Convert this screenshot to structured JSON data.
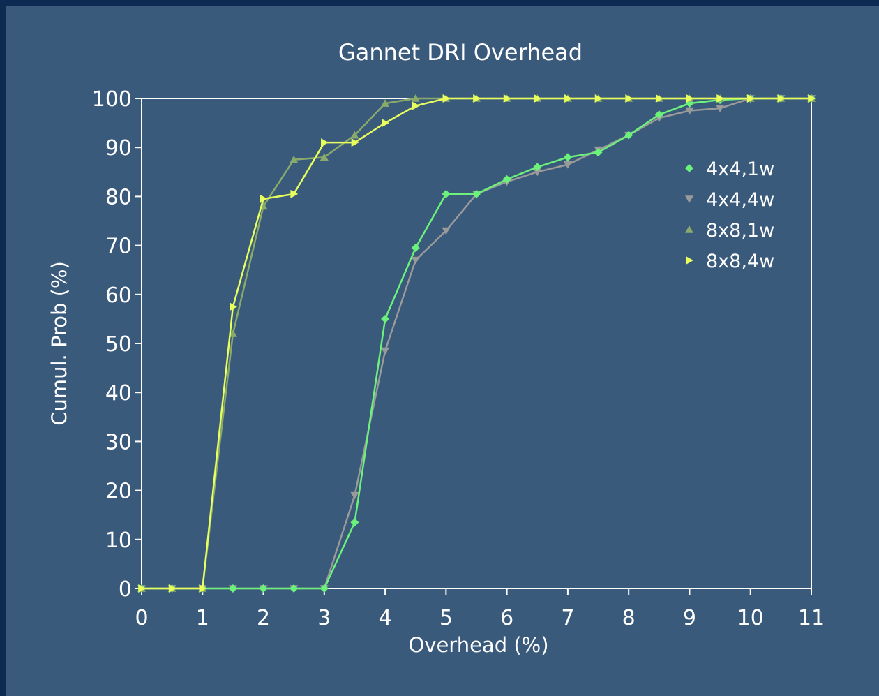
{
  "chart_data": {
    "type": "line",
    "title": "Gannet DRI Overhead",
    "xlabel": "Overhead (%)",
    "ylabel": "Cumul. Prob (%)",
    "xlim": [
      0,
      11
    ],
    "ylim": [
      0,
      100
    ],
    "xticks": [
      "0",
      "1",
      "2",
      "3",
      "4",
      "5",
      "6",
      "7",
      "8",
      "9",
      "10",
      "11"
    ],
    "yticks": [
      "0",
      "10",
      "20",
      "30",
      "40",
      "50",
      "60",
      "70",
      "80",
      "90",
      "100"
    ],
    "grid": "horizontal line at 100 only",
    "legend_position": "right",
    "background_color": "#3a5a7c",
    "x": [
      0,
      0.5,
      1,
      1.5,
      2,
      2.5,
      3,
      3.5,
      4,
      4.5,
      5,
      5.5,
      6,
      6.5,
      7,
      7.5,
      8,
      8.5,
      9,
      9.5,
      10,
      10.5,
      11
    ],
    "series": [
      {
        "name": "4x4,1w",
        "marker": "diamond",
        "color": "#6cf27a",
        "values": [
          0,
          0,
          0,
          0,
          0,
          0,
          0,
          13.5,
          55,
          69.5,
          80.5,
          80.5,
          83.5,
          86,
          88,
          89,
          92.5,
          96.7,
          99,
          99.7,
          100,
          100,
          100
        ]
      },
      {
        "name": "4x4,4w",
        "marker": "triangle-down",
        "color": "#9a9a9a",
        "values": [
          0,
          0,
          0,
          0,
          0,
          0,
          0,
          19,
          48.5,
          67,
          73,
          80.5,
          83,
          85,
          86.5,
          89.5,
          92.5,
          96,
          97.5,
          98,
          100,
          100,
          100
        ]
      },
      {
        "name": "8x8,1w",
        "marker": "triangle-up",
        "color": "#8aaa6c",
        "values": [
          0,
          0,
          0,
          52,
          78,
          87.5,
          88,
          92.5,
          99,
          100,
          100,
          100,
          100,
          100,
          100,
          100,
          100,
          100,
          100,
          100,
          100,
          100,
          100
        ]
      },
      {
        "name": "8x8,4w",
        "marker": "triangle-right",
        "color": "#e8ff5c",
        "values": [
          0,
          0,
          0,
          57.5,
          79.5,
          80.5,
          91,
          91,
          95,
          98.5,
          100,
          100,
          100,
          100,
          100,
          100,
          100,
          100,
          100,
          100,
          100,
          100,
          100
        ]
      }
    ]
  }
}
